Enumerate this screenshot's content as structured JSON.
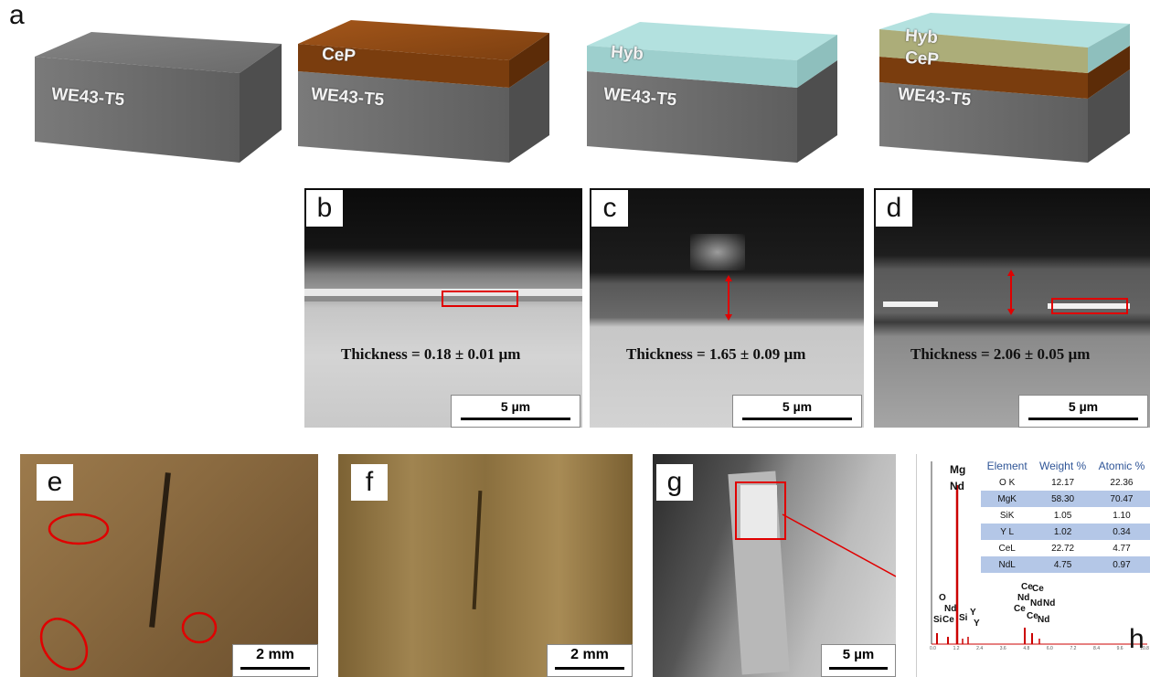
{
  "panels": {
    "a": {
      "label": "a",
      "blocks": [
        {
          "layers": [
            "WE43-T5"
          ]
        },
        {
          "layers": [
            "CeP",
            "WE43-T5"
          ]
        },
        {
          "layers": [
            "Hyb",
            "WE43-T5"
          ]
        },
        {
          "layers": [
            "Hyb",
            "CeP",
            "WE43-T5"
          ]
        }
      ]
    },
    "b": {
      "label": "b",
      "thickness": "Thickness = 0.18 ± 0.01 µm",
      "scale": "5 µm"
    },
    "c": {
      "label": "c",
      "thickness": "Thickness = 1.65 ± 0.09 µm",
      "scale": "5 µm"
    },
    "d": {
      "label": "d",
      "thickness": "Thickness = 2.06 ± 0.05 µm",
      "scale": "5 µm"
    },
    "e": {
      "label": "e",
      "scale": "2 mm"
    },
    "f": {
      "label": "f",
      "scale": "2 mm"
    },
    "g": {
      "label": "g",
      "scale": "5 µm"
    },
    "h": {
      "label": "h",
      "table": {
        "headers": [
          "Element",
          "Weight %",
          "Atomic %"
        ],
        "rows": [
          [
            "O K",
            "12.17",
            "22.36"
          ],
          [
            "MgK",
            "58.30",
            "70.47"
          ],
          [
            "SiK",
            "1.05",
            "1.10"
          ],
          [
            "Y L",
            "1.02",
            "0.34"
          ],
          [
            "CeL",
            "22.72",
            "4.77"
          ],
          [
            "NdL",
            "4.75",
            "0.97"
          ]
        ]
      },
      "peaks": [
        "Mg",
        "Nd",
        "O",
        "Nd",
        "Si",
        "Ce",
        "Si",
        "Y",
        "Y",
        "Ce",
        "Ce",
        "Nd",
        "Nd",
        "Nd",
        "Ce",
        "Ce",
        "Nd"
      ],
      "ticks": [
        "0.0",
        "1.2",
        "2.4",
        "3.6",
        "4.8",
        "6.0",
        "7.2",
        "8.4",
        "9.6",
        "10.8"
      ]
    }
  },
  "colors": {
    "annotation_red": "#e00000",
    "cep": "#8b4a16",
    "hyb": "#9fd8d6",
    "substrate": "#6f6f6f",
    "table_blue": "#b4c7e7"
  }
}
